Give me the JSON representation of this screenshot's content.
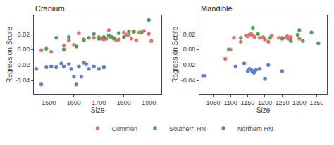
{
  "chart_data": [
    {
      "type": "scatter",
      "title": "Cranium",
      "xlabel": "Size",
      "ylabel": "Regression Score",
      "xlim": [
        1440,
        1950
      ],
      "ylim": [
        -0.058,
        0.044
      ],
      "xticks": [
        1500,
        1600,
        1700,
        1800,
        1900
      ],
      "yticks": [
        -0.04,
        -0.02,
        {
          "value": 0,
          "label": "0.00"
        },
        0.02
      ],
      "grid": false,
      "legend": "bottom",
      "marker": "circle",
      "series": [
        {
          "name": "Common",
          "color": "#e07070",
          "x": [
            1470,
            1510,
            1560,
            1580,
            1600,
            1620,
            1640,
            1680,
            1700,
            1710,
            1720,
            1730,
            1740,
            1750,
            1760,
            1770,
            1780,
            1800,
            1810,
            1820,
            1830,
            1840,
            1850,
            1860,
            1870,
            1880,
            1900,
            1910
          ],
          "values": [
            -0.001,
            -0.003,
            0.005,
            0.012,
            0.006,
            0.021,
            0.013,
            0.015,
            0.016,
            0.014,
            0.013,
            0.014,
            0.025,
            0.016,
            0.015,
            0.012,
            0.013,
            0.022,
            0.019,
            0.019,
            0.014,
            0.023,
            0.012,
            0.022,
            0.022,
            0.024,
            0.02,
            0.011
          ]
        },
        {
          "name": "Southern HN",
          "color": "#50a050",
          "x": [
            1490,
            1530,
            1560,
            1580,
            1610,
            1640,
            1660,
            1680,
            1700,
            1720,
            1740,
            1750,
            1760,
            1780,
            1800,
            1820,
            1840,
            1870,
            1900
          ],
          "values": [
            0.001,
            0.015,
            0.0,
            0.016,
            0.004,
            0.012,
            0.015,
            0.02,
            0.014,
            0.016,
            0.018,
            0.016,
            0.014,
            0.021,
            0.016,
            0.023,
            0.023,
            0.022,
            0.038
          ]
        },
        {
          "name": "Northern HN",
          "color": "#6080c0",
          "x": [
            1450,
            1470,
            1490,
            1510,
            1530,
            1550,
            1560,
            1580,
            1590,
            1600,
            1610,
            1620,
            1630,
            1640,
            1650,
            1660,
            1680,
            1700,
            1720
          ],
          "values": [
            -0.025,
            -0.045,
            -0.023,
            -0.022,
            -0.023,
            -0.018,
            -0.022,
            -0.019,
            -0.025,
            -0.035,
            -0.045,
            -0.022,
            -0.035,
            -0.017,
            -0.019,
            -0.025,
            -0.022,
            -0.025,
            -0.023
          ]
        }
      ]
    },
    {
      "type": "scatter",
      "title": "Mandible",
      "xlabel": "Size",
      "ylabel": "Regression Score",
      "xlim": [
        1010,
        1380
      ],
      "ylim": [
        -0.058,
        0.044
      ],
      "xticks": [
        1050,
        1100,
        1150,
        1200,
        1250,
        1300,
        1350
      ],
      "yticks": [
        -0.04,
        -0.02,
        {
          "value": 0,
          "label": "0.00"
        },
        0.02
      ],
      "grid": false,
      "legend": "bottom",
      "marker": "circle",
      "series": [
        {
          "name": "Common",
          "color": "#e07070",
          "x": [
            1085,
            1100,
            1110,
            1130,
            1145,
            1150,
            1155,
            1160,
            1165,
            1170,
            1185,
            1195,
            1200,
            1210,
            1220,
            1240,
            1250,
            1260,
            1265,
            1270,
            1275,
            1300
          ],
          "values": [
            -0.012,
            0.0,
            0.015,
            0.01,
            0.018,
            0.017,
            0.019,
            0.02,
            0.018,
            0.016,
            0.015,
            0.016,
            0.013,
            0.01,
            0.018,
            0.015,
            0.015,
            0.015,
            0.017,
            0.014,
            0.016,
            0.014
          ]
        },
        {
          "name": "Southern HN",
          "color": "#50a050",
          "x": [
            1095,
            1130,
            1165,
            1180,
            1215,
            1250,
            1275,
            1295,
            1300,
            1310,
            1335,
            1355
          ],
          "values": [
            0.0,
            0.015,
            0.028,
            0.02,
            0.015,
            0.014,
            0.011,
            0.019,
            0.025,
            0.011,
            0.022,
            0.008
          ]
        },
        {
          "name": "Northern HN",
          "color": "#6080c0",
          "x": [
            1020,
            1025,
            1115,
            1140,
            1150,
            1155,
            1160,
            1163,
            1168,
            1170,
            1175,
            1185,
            1200,
            1210,
            1250
          ],
          "values": [
            -0.034,
            -0.034,
            -0.022,
            -0.018,
            -0.028,
            -0.025,
            -0.026,
            -0.028,
            -0.03,
            -0.028,
            -0.026,
            -0.025,
            -0.038,
            -0.02,
            -0.028
          ]
        }
      ]
    }
  ]
}
